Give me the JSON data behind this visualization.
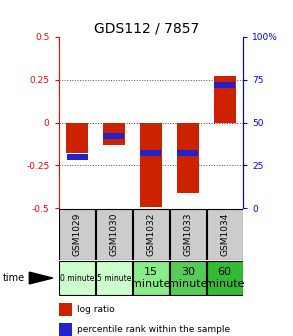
{
  "title": "GDS112 / 7857",
  "samples": [
    "GSM1029",
    "GSM1030",
    "GSM1032",
    "GSM1033",
    "GSM1034"
  ],
  "time_labels": [
    "0 minute",
    "5 minute",
    "15\nminute",
    "30\nminute",
    "60\nminute"
  ],
  "time_colors": [
    "#ccffcc",
    "#ccffcc",
    "#88ee88",
    "#55cc55",
    "#33bb33"
  ],
  "log_ratios": [
    -0.18,
    -0.13,
    -0.49,
    -0.41,
    0.27
  ],
  "percentile_ranks": [
    30,
    42,
    32,
    32,
    72
  ],
  "ylim": [
    -0.5,
    0.5
  ],
  "right_ylim": [
    0,
    100
  ],
  "right_yticks": [
    0,
    25,
    50,
    75,
    100
  ],
  "right_yticklabels": [
    "0",
    "25",
    "50",
    "75",
    "100%"
  ],
  "left_yticks": [
    -0.5,
    -0.25,
    0,
    0.25,
    0.5
  ],
  "left_yticklabels": [
    "-0.5",
    "-0.25",
    "0",
    "0.25",
    "0.5"
  ],
  "bar_color": "#cc2200",
  "percentile_color": "#2222cc",
  "zero_line_color": "#cc0000",
  "dotted_line_color": "#555555",
  "bar_width": 0.6,
  "header_bg": "#cccccc",
  "sample_fontsize": 6.5,
  "time_fontsize_small": 5.5,
  "time_fontsize_large": 8,
  "title_fontsize": 10,
  "ytick_fontsize": 6.5,
  "legend_fontsize": 6.5
}
